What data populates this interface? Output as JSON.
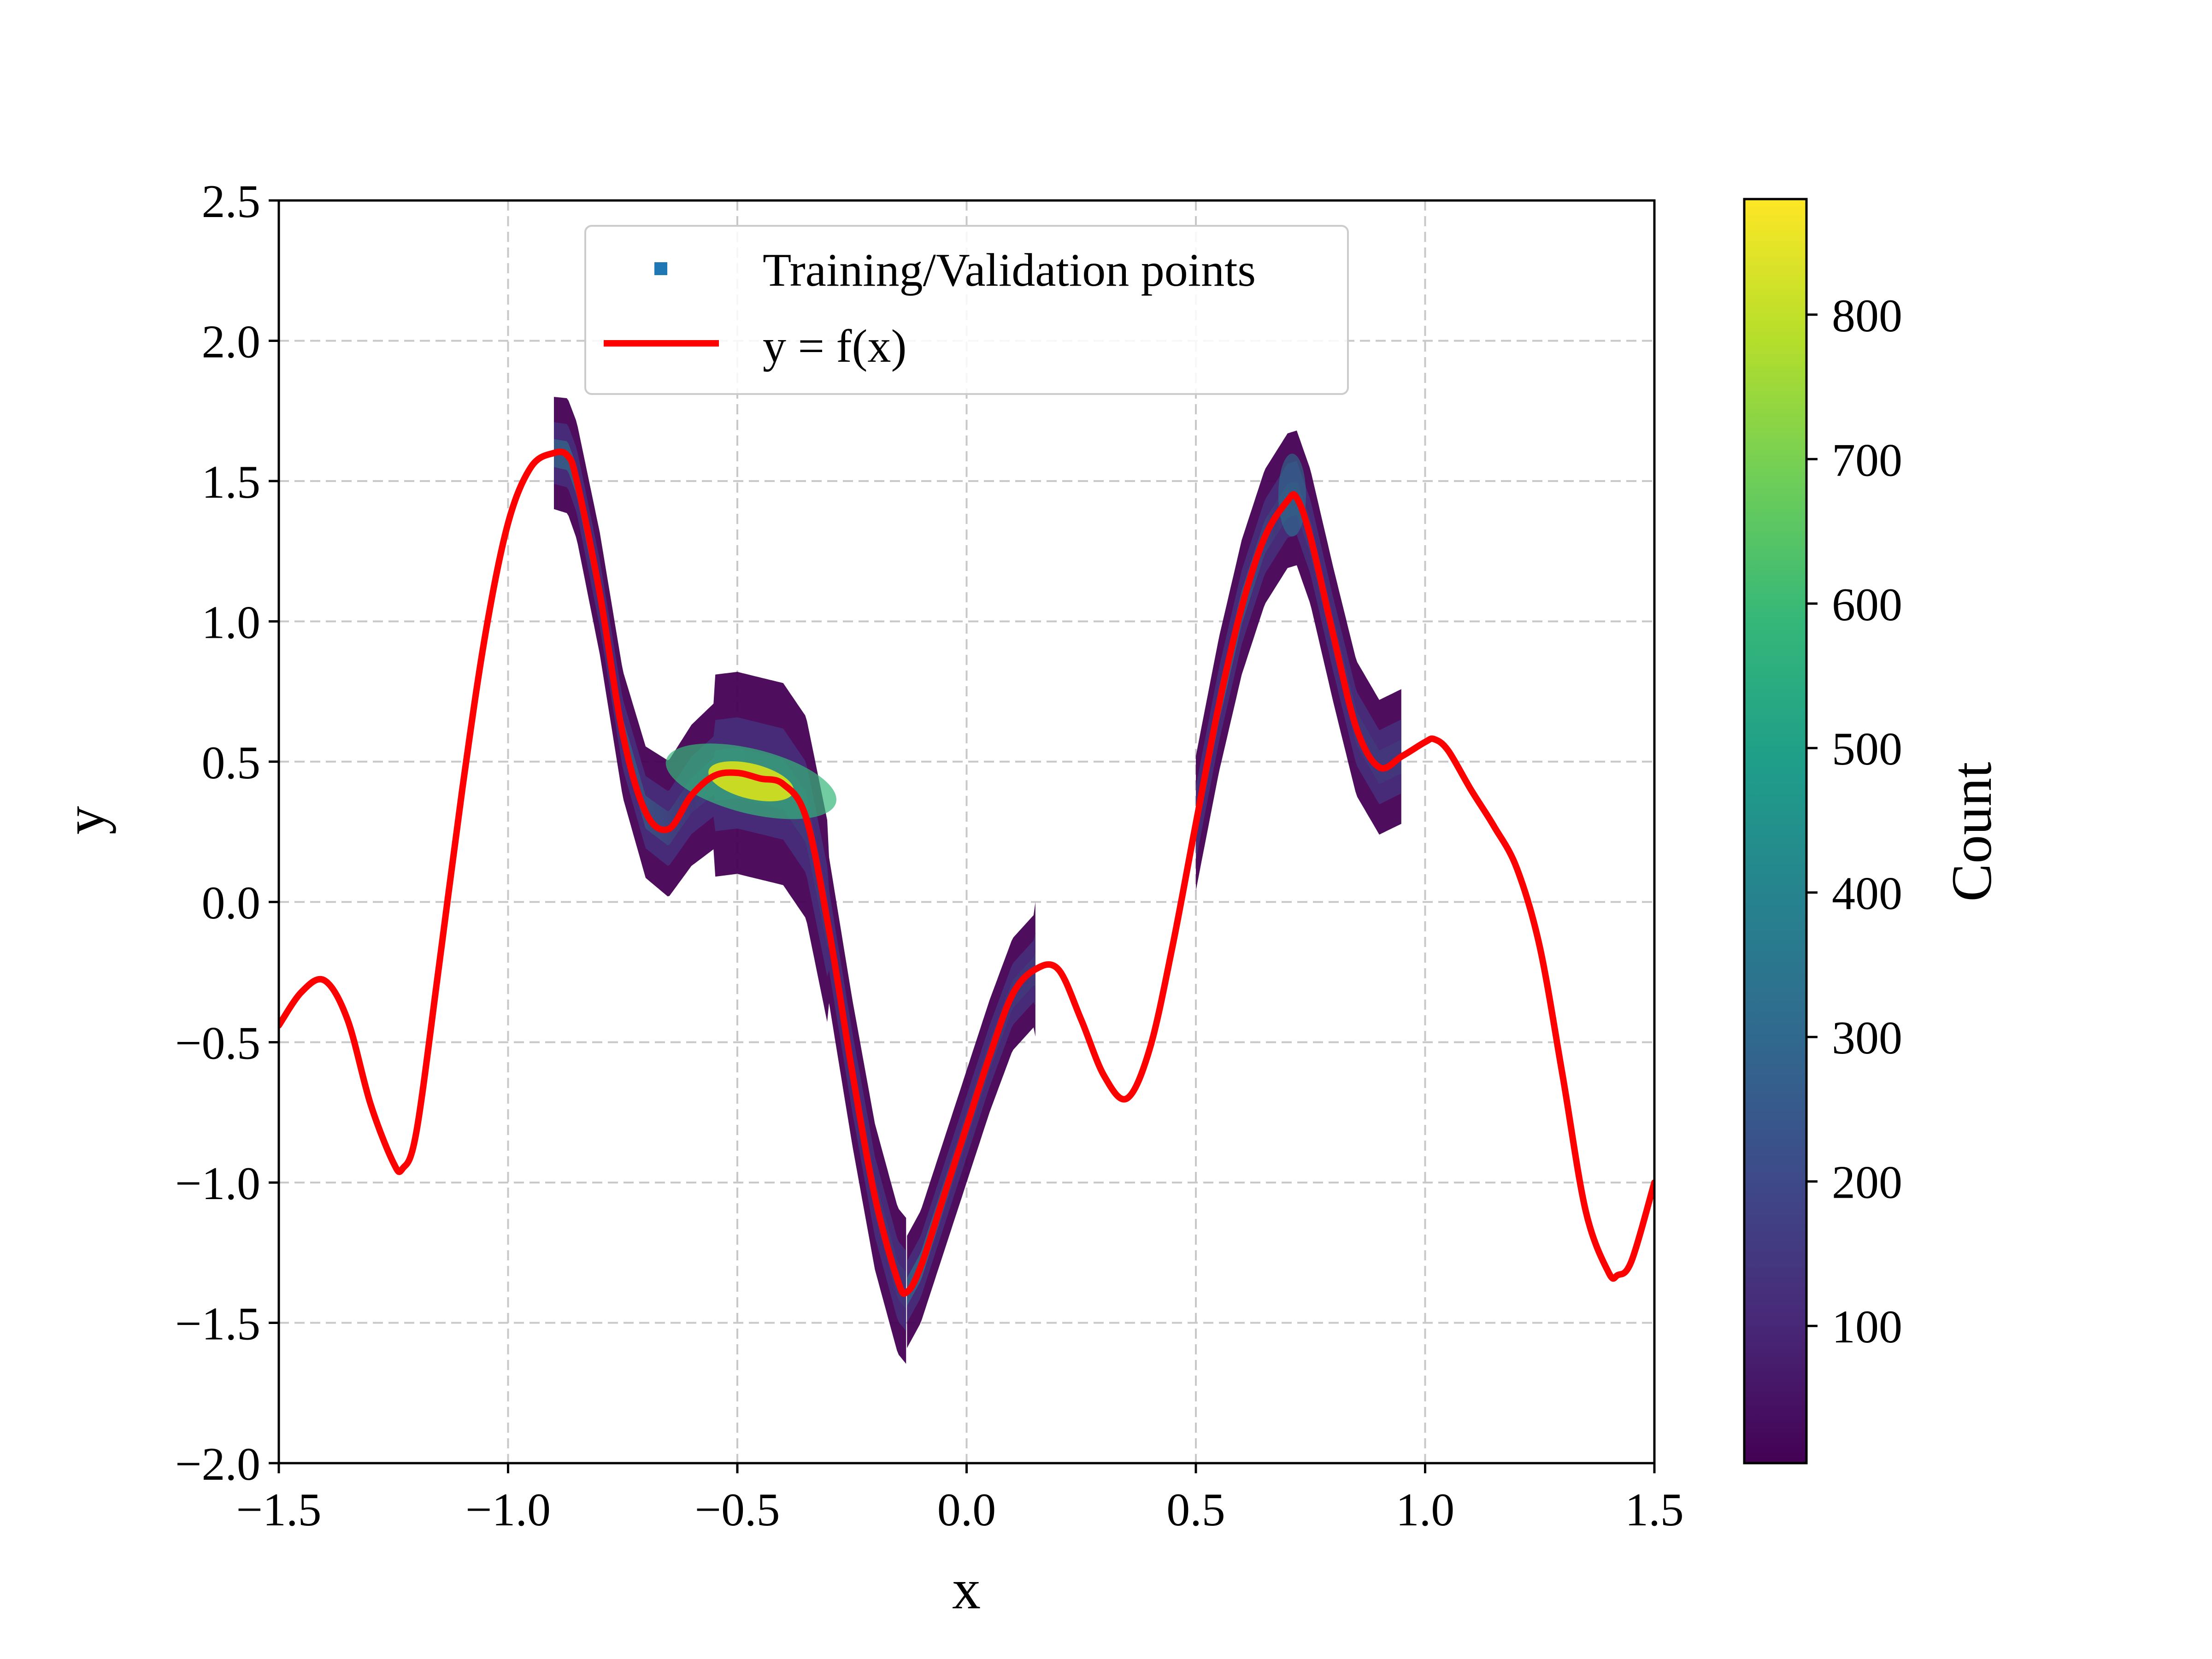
{
  "chart_data": {
    "type": "scatter",
    "title": "",
    "xlabel": "x",
    "ylabel": "y",
    "xlim": [
      -1.5,
      1.5
    ],
    "ylim": [
      -2.0,
      2.5
    ],
    "x_ticks": [
      -1.5,
      -1.0,
      -0.5,
      0.0,
      0.5,
      1.0,
      1.5
    ],
    "x_tick_labels": [
      "−1.5",
      "−1.0",
      "−0.5",
      "0.0",
      "0.5",
      "1.0",
      "1.5"
    ],
    "y_ticks": [
      -2.0,
      -1.5,
      -1.0,
      -0.5,
      0.0,
      0.5,
      1.0,
      1.5,
      2.0,
      2.5
    ],
    "y_tick_labels": [
      "−2.0",
      "−1.5",
      "−1.0",
      "−0.5",
      "0.0",
      "0.5",
      "1.0",
      "1.5",
      "2.0",
      "2.5"
    ],
    "grid": true,
    "legend_position": "top-center",
    "series": [
      {
        "name": "Training/Validation points",
        "kind": "2d-histogram",
        "color": "#1f77b4",
        "x_range": [
          [
            -0.9,
            -0.13
          ],
          [
            -0.13,
            0.15
          ],
          [
            0.5,
            0.95
          ]
        ],
        "density_peak": {
          "x": -0.47,
          "y": 0.43,
          "count": 880
        }
      },
      {
        "name": "y = f(x)",
        "kind": "line",
        "color": "#ff0000",
        "x": [
          -1.5,
          -1.45,
          -1.4,
          -1.35,
          -1.3,
          -1.25,
          -1.23,
          -1.2,
          -1.15,
          -1.1,
          -1.05,
          -1.0,
          -0.95,
          -0.9,
          -0.87,
          -0.85,
          -0.8,
          -0.75,
          -0.7,
          -0.65,
          -0.6,
          -0.55,
          -0.5,
          -0.45,
          -0.4,
          -0.35,
          -0.3,
          -0.25,
          -0.2,
          -0.15,
          -0.13,
          -0.1,
          -0.05,
          0.0,
          0.05,
          0.1,
          0.15,
          0.2,
          0.25,
          0.3,
          0.35,
          0.4,
          0.45,
          0.5,
          0.55,
          0.6,
          0.65,
          0.7,
          0.72,
          0.75,
          0.8,
          0.85,
          0.9,
          0.95,
          1.0,
          1.02,
          1.05,
          1.1,
          1.15,
          1.2,
          1.25,
          1.3,
          1.35,
          1.4,
          1.42,
          1.45,
          1.5
        ],
        "y": [
          -0.44,
          -0.32,
          -0.28,
          -0.42,
          -0.72,
          -0.93,
          -0.95,
          -0.82,
          -0.22,
          0.4,
          0.95,
          1.35,
          1.55,
          1.6,
          1.59,
          1.5,
          1.1,
          0.6,
          0.32,
          0.26,
          0.38,
          0.45,
          0.46,
          0.44,
          0.42,
          0.3,
          -0.1,
          -0.6,
          -1.05,
          -1.35,
          -1.39,
          -1.3,
          -1.05,
          -0.8,
          -0.55,
          -0.33,
          -0.24,
          -0.24,
          -0.42,
          -0.62,
          -0.7,
          -0.52,
          -0.15,
          0.28,
          0.7,
          1.05,
          1.3,
          1.43,
          1.44,
          1.3,
          0.95,
          0.62,
          0.48,
          0.52,
          0.57,
          0.58,
          0.54,
          0.4,
          0.27,
          0.12,
          -0.16,
          -0.62,
          -1.1,
          -1.32,
          -1.33,
          -1.28,
          -1.0
        ]
      }
    ],
    "colorbar": {
      "label": "Count",
      "range": [
        5,
        880
      ],
      "ticks": [
        100,
        200,
        300,
        400,
        500,
        600,
        700,
        800
      ],
      "tick_labels": [
        "100",
        "200",
        "300",
        "400",
        "500",
        "600",
        "700",
        "800"
      ],
      "colormap": "viridis",
      "colors": [
        "#440154",
        "#482878",
        "#3e4989",
        "#31688e",
        "#26828e",
        "#1f9e89",
        "#35b779",
        "#6ece58",
        "#b5de2b",
        "#fde725"
      ]
    }
  }
}
